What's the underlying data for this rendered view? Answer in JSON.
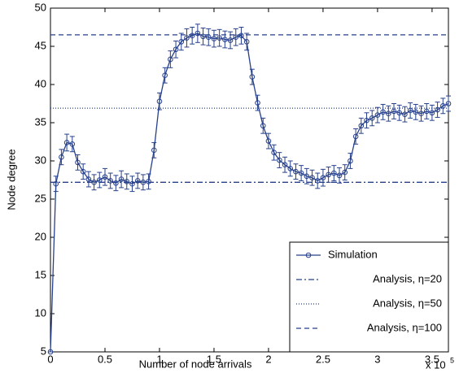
{
  "chart_data": {
    "type": "line",
    "xlabel": "Number of node arrivals",
    "ylabel": "Node degree",
    "x_multiplier": {
      "base": "x 10",
      "exponent": "5"
    },
    "xlim": [
      0,
      365000
    ],
    "ylim": [
      5,
      50
    ],
    "xticks": [
      0,
      {
        "value": 50000,
        "label": "0.5"
      },
      {
        "value": 100000,
        "label": "1"
      },
      {
        "value": 150000,
        "label": "1.5"
      },
      {
        "value": 200000,
        "label": "2"
      },
      {
        "value": 250000,
        "label": "2.5"
      },
      {
        "value": 300000,
        "label": "3"
      },
      {
        "value": 350000,
        "label": "3.5"
      }
    ],
    "yticks": [
      5,
      10,
      15,
      20,
      25,
      30,
      35,
      40,
      45,
      50
    ],
    "legend": "lower right",
    "x": [
      0,
      5000,
      10000,
      15000,
      20000,
      25000,
      30000,
      35000,
      40000,
      45000,
      50000,
      55000,
      60000,
      65000,
      70000,
      75000,
      80000,
      85000,
      90000,
      95000,
      100000,
      105000,
      110000,
      115000,
      120000,
      125000,
      130000,
      135000,
      140000,
      145000,
      150000,
      155000,
      160000,
      165000,
      170000,
      175000,
      180000,
      185000,
      190000,
      195000,
      200000,
      205000,
      210000,
      215000,
      220000,
      225000,
      230000,
      235000,
      240000,
      245000,
      250000,
      255000,
      260000,
      265000,
      270000,
      275000,
      280000,
      285000,
      290000,
      295000,
      300000,
      305000,
      310000,
      315000,
      320000,
      325000,
      330000,
      335000,
      340000,
      345000,
      350000,
      355000,
      360000,
      365000
    ],
    "series": [
      {
        "name": "Simulation",
        "color": "#27408b",
        "style": "line-marker",
        "values": [
          5,
          27,
          30.5,
          32.4,
          32.2,
          29.8,
          28.6,
          27.6,
          27.2,
          27.5,
          27.9,
          27.4,
          27.1,
          27.6,
          27.3,
          27.0,
          27.4,
          27.2,
          27.3,
          31.4,
          37.8,
          41.2,
          43.3,
          44.6,
          45.6,
          46.1,
          46.4,
          46.7,
          46.3,
          46.2,
          46.0,
          46.1,
          45.9,
          45.8,
          46.2,
          46.4,
          45.6,
          41.0,
          37.6,
          34.6,
          32.6,
          31.1,
          30.1,
          29.5,
          29.0,
          28.6,
          28.4,
          28.0,
          27.8,
          27.4,
          27.8,
          28.2,
          28.4,
          28.1,
          28.5,
          30.0,
          33.2,
          34.6,
          35.3,
          35.6,
          36.0,
          36.4,
          36.2,
          36.5,
          36.3,
          36.1,
          36.6,
          36.4,
          36.2,
          36.5,
          36.3,
          36.7,
          37.2,
          37.5
        ],
        "errors": [
          0,
          1.0,
          1.0,
          1.1,
          1.0,
          1.0,
          1.0,
          1.0,
          1.0,
          1.0,
          1.1,
          1.0,
          1.0,
          1.1,
          1.0,
          1.0,
          1.0,
          1.0,
          1.0,
          1.0,
          1.1,
          1.0,
          1.1,
          1.1,
          1.1,
          1.2,
          1.1,
          1.2,
          1.1,
          1.1,
          1.1,
          1.1,
          1.1,
          1.1,
          1.1,
          1.1,
          1.1,
          1.0,
          1.0,
          1.0,
          1.0,
          1.0,
          1.0,
          1.0,
          1.0,
          1.0,
          1.0,
          1.0,
          1.0,
          1.0,
          1.1,
          1.0,
          1.0,
          1.0,
          1.0,
          1.0,
          1.0,
          1.0,
          1.0,
          1.0,
          1.0,
          1.0,
          1.0,
          1.0,
          1.0,
          1.0,
          1.0,
          1.0,
          1.0,
          1.0,
          1.0,
          1.0,
          1.0,
          1.0
        ]
      },
      {
        "name": "Analysis, η=20",
        "color": "#27408b",
        "style": "dashdot",
        "value": 27.2
      },
      {
        "name": "Analysis, η=50",
        "color": "#27408b",
        "style": "dotted",
        "value": 36.9
      },
      {
        "name": "Analysis, η=100",
        "color": "#27408b",
        "style": "dashed",
        "value": 46.5
      }
    ]
  }
}
